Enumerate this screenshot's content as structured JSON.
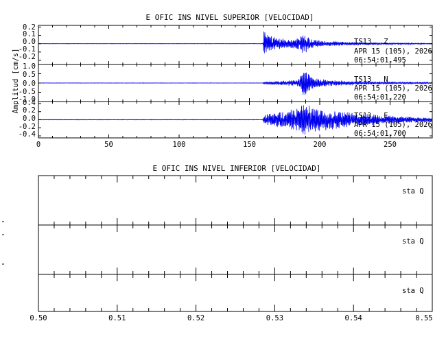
{
  "upper": {
    "title": "E OFIC INS NIVEL SUPERIOR [VELOCIDAD]",
    "ylabel": "Amplitud [cm/s]",
    "trace_color": "#0000ee",
    "xlim": [
      0,
      280
    ],
    "x_ticks": [
      "0",
      "50",
      "100",
      "150",
      "200",
      "250"
    ],
    "channels": [
      {
        "station": "TS13",
        "component": "Z",
        "date": "APR 15 (105), 2026",
        "time": "06:54:01.495",
        "ylim": [
          -0.25,
          0.22
        ],
        "y_ticks": [
          "0.2",
          "0.1",
          "0.0",
          "-0.1",
          "-0.2"
        ],
        "envelope": [
          [
            0,
            0.002
          ],
          [
            159.5,
            0.002
          ],
          [
            160.3,
            0.2
          ],
          [
            162,
            0.12
          ],
          [
            168,
            0.08
          ],
          [
            178,
            0.05
          ],
          [
            185,
            0.07
          ],
          [
            188,
            0.14
          ],
          [
            190,
            0.12
          ],
          [
            195,
            0.05
          ],
          [
            205,
            0.03
          ],
          [
            230,
            0.015
          ],
          [
            280,
            0.005
          ]
        ]
      },
      {
        "station": "TS13",
        "component": "N",
        "date": "APR 15 (105), 2026",
        "time": "06:54:01.220",
        "ylim": [
          -1.0,
          1.0
        ],
        "y_ticks": [
          "1.0",
          "0.5",
          "0.0",
          "-0.5",
          "-1.0"
        ],
        "envelope": [
          [
            0,
            0.01
          ],
          [
            159.5,
            0.01
          ],
          [
            160.5,
            0.08
          ],
          [
            170,
            0.1
          ],
          [
            180,
            0.15
          ],
          [
            185,
            0.2
          ],
          [
            188,
            0.85
          ],
          [
            190,
            0.7
          ],
          [
            195,
            0.3
          ],
          [
            205,
            0.18
          ],
          [
            230,
            0.08
          ],
          [
            280,
            0.04
          ]
        ]
      },
      {
        "station": "TS13",
        "component": "E",
        "date": "APR 15 (105), 2026",
        "time": "06:54:01.700",
        "ylim": [
          -0.45,
          0.45
        ],
        "y_ticks": [
          "0.4",
          "0.2",
          "0.0",
          "-0.2",
          "-0.4"
        ],
        "envelope": [
          [
            0,
            0.005
          ],
          [
            159.5,
            0.005
          ],
          [
            160.5,
            0.12
          ],
          [
            170,
            0.2
          ],
          [
            180,
            0.25
          ],
          [
            188,
            0.42
          ],
          [
            195,
            0.32
          ],
          [
            210,
            0.25
          ],
          [
            230,
            0.15
          ],
          [
            260,
            0.08
          ],
          [
            280,
            0.05
          ]
        ]
      }
    ]
  },
  "lower": {
    "title": "E OFIC INS NIVEL INFERIOR [VELOCIDAD]",
    "xlim": [
      0.5,
      0.55
    ],
    "x_ticks": [
      "0.50",
      "0.51",
      "0.52",
      "0.53",
      "0.54",
      "0.55"
    ],
    "channels": [
      {
        "label": "sta  Q"
      },
      {
        "label": "sta  Q"
      },
      {
        "label": "sta  Q"
      }
    ]
  }
}
